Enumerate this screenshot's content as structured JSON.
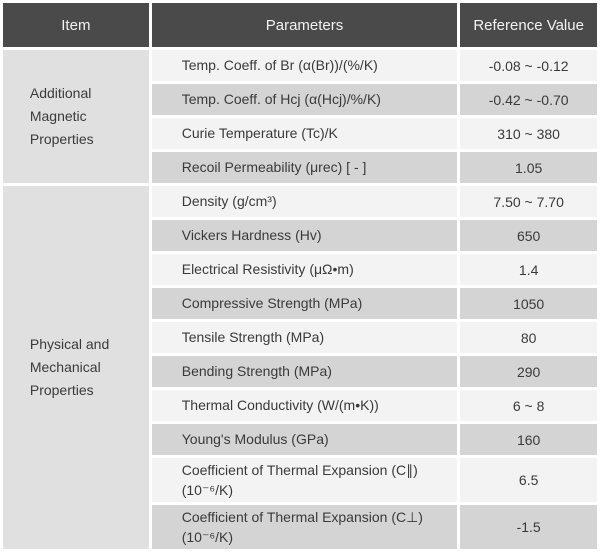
{
  "header": {
    "item": "Item",
    "parameters": "Parameters",
    "reference_value": "Reference Value"
  },
  "sections": [
    {
      "item_label": "Additional Magnetic Properties",
      "rows": [
        {
          "parameter": "Temp. Coeff. of Br (α(Br))/(%/K)",
          "value": "-0.08 ~ -0.12"
        },
        {
          "parameter": "Temp. Coeff. of Hcj (α(Hcj)/%/K)",
          "value": "-0.42 ~ -0.70"
        },
        {
          "parameter": "Curie Temperature (Tc)/K",
          "value": "310 ~ 380"
        },
        {
          "parameter": "Recoil Permeability (μrec) [ - ]",
          "value": "1.05"
        }
      ]
    },
    {
      "item_label": "Physical and Mechanical Properties",
      "rows": [
        {
          "parameter": "Density (g/cm³)",
          "value": "7.50 ~ 7.70"
        },
        {
          "parameter": "Vickers Hardness (Hv)",
          "value": "650"
        },
        {
          "parameter": "Electrical Resistivity (μΩ•m)",
          "value": "1.4"
        },
        {
          "parameter": "Compressive Strength (MPa)",
          "value": "1050"
        },
        {
          "parameter": "Tensile Strength (MPa)",
          "value": "80"
        },
        {
          "parameter": "Bending Strength (MPa)",
          "value": "290"
        },
        {
          "parameter": "Thermal Conductivity (W/(m•K))",
          "value": "6 ~ 8"
        },
        {
          "parameter": "Young's Modulus (GPa)",
          "value": "160"
        },
        {
          "parameter": "Coefficient of Thermal Expansion (C∥) (10⁻⁶/K)",
          "value": "6.5"
        },
        {
          "parameter": "Coefficient of Thermal Expansion (C⊥) (10⁻⁶/K)",
          "value": "-1.5"
        }
      ]
    }
  ],
  "colors": {
    "header_bg": "#4a4a4a",
    "header_text": "#f2f2f2",
    "row_light": "#f3f3f3",
    "row_dark": "#d4d4d4",
    "item_cell_bg": "#e0e0e0",
    "body_text": "#3a3a3a",
    "gap": "#ffffff"
  }
}
